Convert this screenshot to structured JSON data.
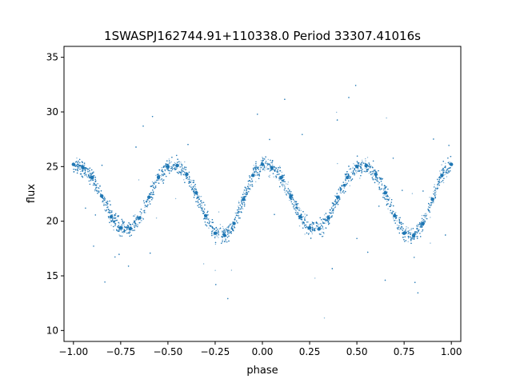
{
  "chart_data": {
    "type": "scatter",
    "title": "1SWASPJ162744.91+110338.0 Period 33307.41016s",
    "xlabel": "phase",
    "ylabel": "flux",
    "xlim": [
      -1.05,
      1.05
    ],
    "ylim": [
      9.0,
      36.0
    ],
    "xticks": [
      -1.0,
      -0.75,
      -0.5,
      -0.25,
      0.0,
      0.25,
      0.5,
      0.75,
      1.0
    ],
    "xtick_labels": [
      "−1.00",
      "−0.75",
      "−0.50",
      "−0.25",
      "0.00",
      "0.25",
      "0.50",
      "0.75",
      "1.00"
    ],
    "yticks": [
      10,
      15,
      20,
      25,
      30,
      35
    ],
    "ytick_labels": [
      "10",
      "15",
      "20",
      "25",
      "30",
      "35"
    ],
    "grid": false,
    "legend": "none",
    "marker_color": "#1f77b4",
    "series": [
      {
        "name": "",
        "x": [
          -1.0,
          -0.95,
          -0.9,
          -0.85,
          -0.8,
          -0.75,
          -0.7,
          -0.65,
          -0.6,
          -0.55,
          -0.5,
          -0.45,
          -0.4,
          -0.35,
          -0.3,
          -0.25,
          -0.2,
          -0.15,
          -0.1,
          -0.05,
          0.0,
          0.05,
          0.1,
          0.15,
          0.2,
          0.25,
          0.3,
          0.35,
          0.4,
          0.45,
          0.5,
          0.55,
          0.6,
          0.65,
          0.7,
          0.75,
          0.8,
          0.85,
          0.9,
          0.95,
          1.0
        ],
        "y": [
          25.2,
          24.9,
          24.0,
          22.3,
          20.4,
          19.4,
          19.3,
          20.3,
          22.2,
          24.0,
          25.0,
          25.1,
          24.3,
          22.6,
          20.5,
          18.9,
          18.7,
          19.8,
          22.0,
          24.2,
          25.2,
          24.9,
          24.0,
          22.3,
          20.4,
          19.4,
          19.3,
          20.3,
          22.2,
          24.0,
          25.0,
          25.1,
          24.3,
          22.6,
          20.5,
          18.9,
          18.7,
          19.8,
          22.0,
          24.2,
          25.2
        ]
      }
    ]
  }
}
